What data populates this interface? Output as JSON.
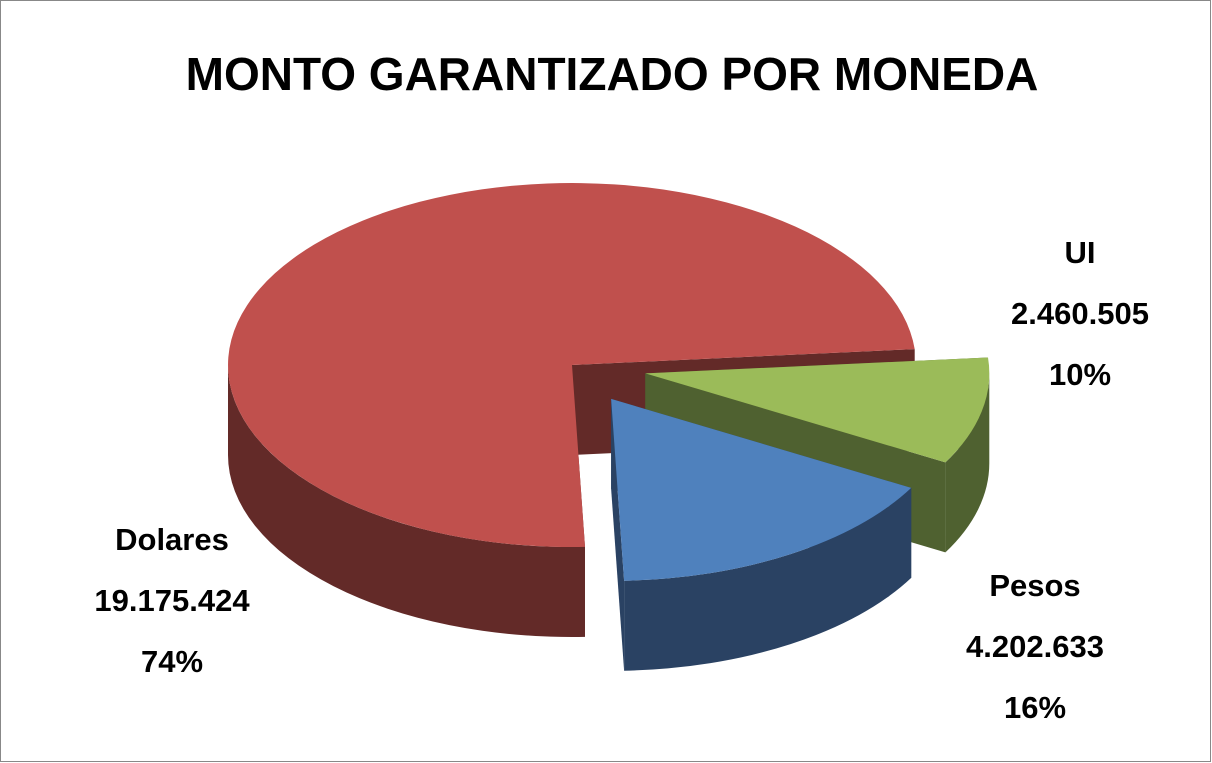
{
  "chart_data": {
    "type": "pie3d",
    "title": "MONTO GARANTIZADO POR MONEDA",
    "categories": [
      "UI",
      "Pesos",
      "Dolares"
    ],
    "values": [
      2460505,
      4202633,
      19175424
    ],
    "value_labels": [
      "2.460.505",
      "4.202.633",
      "19.175.424"
    ],
    "percents": [
      10,
      16,
      74
    ],
    "percent_labels": [
      "10%",
      "16%",
      "74%"
    ],
    "colors": [
      "#9bbb59",
      "#4f81bd",
      "#c0504d"
    ],
    "side_colors": [
      "#4f6130",
      "#2a4263",
      "#632a28"
    ]
  }
}
